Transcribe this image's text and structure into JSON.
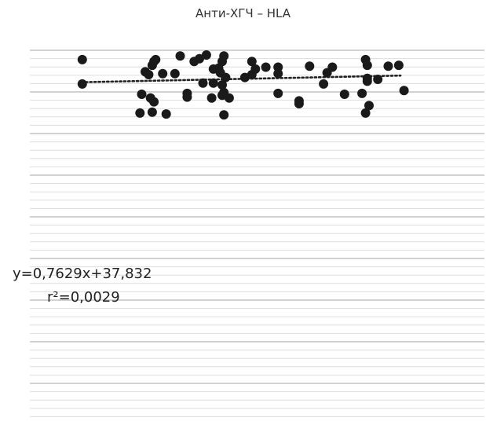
{
  "chart_data": {
    "type": "scatter",
    "title": "Анти-ХГЧ – HLA",
    "xlabel": "",
    "ylabel": "",
    "grid": true,
    "trendline": {
      "style": "dotted",
      "equation": "y=0,7629x+37,832",
      "r2": "r²=0,0029"
    },
    "xlim": [
      0,
      26
    ],
    "ylim": [
      0,
      40
    ],
    "points": [
      {
        "x": 3.0,
        "y": 39.0
      },
      {
        "x": 3.0,
        "y": 36.4
      },
      {
        "x": 6.4,
        "y": 35.3
      },
      {
        "x": 6.6,
        "y": 37.7
      },
      {
        "x": 7.0,
        "y": 38.4
      },
      {
        "x": 7.2,
        "y": 39.0
      },
      {
        "x": 7.1,
        "y": 38.8
      },
      {
        "x": 6.8,
        "y": 37.4
      },
      {
        "x": 7.6,
        "y": 37.5
      },
      {
        "x": 8.3,
        "y": 37.5
      },
      {
        "x": 8.6,
        "y": 39.4
      },
      {
        "x": 6.9,
        "y": 34.9
      },
      {
        "x": 7.1,
        "y": 34.5
      },
      {
        "x": 6.3,
        "y": 33.3
      },
      {
        "x": 7.0,
        "y": 33.4
      },
      {
        "x": 7.8,
        "y": 33.2
      },
      {
        "x": 9.0,
        "y": 35.4
      },
      {
        "x": 9.0,
        "y": 35.0
      },
      {
        "x": 9.4,
        "y": 38.8
      },
      {
        "x": 9.7,
        "y": 39.1
      },
      {
        "x": 10.1,
        "y": 39.5
      },
      {
        "x": 10.5,
        "y": 38.0
      },
      {
        "x": 9.9,
        "y": 36.5
      },
      {
        "x": 10.5,
        "y": 36.5
      },
      {
        "x": 10.8,
        "y": 38.1
      },
      {
        "x": 10.4,
        "y": 34.9
      },
      {
        "x": 11.0,
        "y": 38.8
      },
      {
        "x": 11.1,
        "y": 39.4
      },
      {
        "x": 10.9,
        "y": 37.6
      },
      {
        "x": 11.2,
        "y": 37.1
      },
      {
        "x": 11.0,
        "y": 36.3
      },
      {
        "x": 11.1,
        "y": 35.5
      },
      {
        "x": 11.0,
        "y": 35.2
      },
      {
        "x": 11.4,
        "y": 34.9
      },
      {
        "x": 11.1,
        "y": 33.1
      },
      {
        "x": 12.3,
        "y": 37.1
      },
      {
        "x": 12.7,
        "y": 37.4
      },
      {
        "x": 12.9,
        "y": 38.0
      },
      {
        "x": 13.5,
        "y": 38.2
      },
      {
        "x": 14.2,
        "y": 38.2
      },
      {
        "x": 14.2,
        "y": 37.5
      },
      {
        "x": 14.2,
        "y": 35.4
      },
      {
        "x": 12.7,
        "y": 38.8
      },
      {
        "x": 15.4,
        "y": 34.6
      },
      {
        "x": 15.4,
        "y": 34.3
      },
      {
        "x": 16.0,
        "y": 38.3
      },
      {
        "x": 16.8,
        "y": 36.4
      },
      {
        "x": 17.0,
        "y": 37.6
      },
      {
        "x": 17.3,
        "y": 38.2
      },
      {
        "x": 18.0,
        "y": 35.3
      },
      {
        "x": 19.0,
        "y": 35.4
      },
      {
        "x": 19.3,
        "y": 37.0
      },
      {
        "x": 19.3,
        "y": 36.7
      },
      {
        "x": 19.3,
        "y": 38.4
      },
      {
        "x": 19.2,
        "y": 39.0
      },
      {
        "x": 19.4,
        "y": 34.1
      },
      {
        "x": 19.2,
        "y": 33.3
      },
      {
        "x": 19.9,
        "y": 36.9
      },
      {
        "x": 20.5,
        "y": 38.3
      },
      {
        "x": 21.1,
        "y": 38.4
      },
      {
        "x": 21.4,
        "y": 35.7
      }
    ]
  }
}
